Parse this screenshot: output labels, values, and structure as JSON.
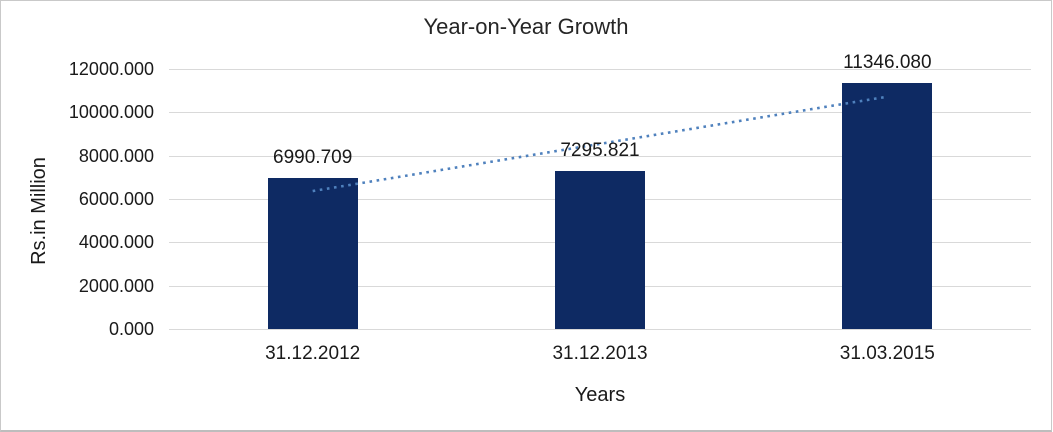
{
  "chart_data": {
    "type": "bar",
    "title": "Year-on-Year Growth",
    "ylabel": "Rs.in Million",
    "xlabel": "Years",
    "categories": [
      "31.12.2012",
      "31.12.2013",
      "31.03.2015"
    ],
    "values": [
      6990.709,
      7295.821,
      11346.08
    ],
    "value_labels": [
      "6990.709",
      "7295.821",
      "11346.080"
    ],
    "ylim": [
      0,
      12000
    ],
    "ytick_values": [
      12000,
      10000,
      8000,
      6000,
      4000,
      2000,
      0
    ],
    "ytick_labels": [
      "12000.000",
      "10000.000",
      "8000.000",
      "6000.000",
      "4000.000",
      "2000.000",
      "0.000"
    ],
    "grid": true,
    "legend_position": "none",
    "bar_color": "#0e2a63",
    "gridline_color": "#d9d9d9",
    "text_color": "#1a1a1a",
    "trendline": {
      "type": "linear",
      "style": "dotted",
      "color": "#4f81bd",
      "start_value": 6366.5,
      "end_value": 10721.9
    }
  }
}
